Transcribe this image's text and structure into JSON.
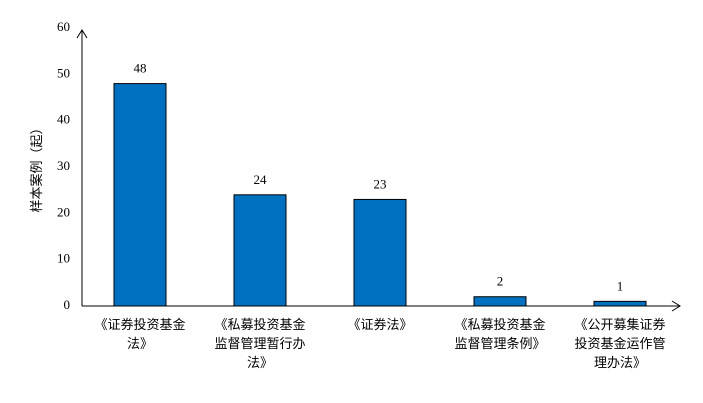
{
  "chart_data": {
    "type": "bar",
    "y_label": "样本案例（起）",
    "categories": [
      "《证券投资基金法》",
      "《私募投资基金监督管理暂行办法》",
      "《证券法》",
      "《私募投资基金监督管理条例》",
      "《公开募集证券投资基金运作管理办法》"
    ],
    "values": [
      48,
      24,
      23,
      2,
      1
    ],
    "color": "#0070c0",
    "ylim": [
      0,
      60
    ],
    "yticks": [
      0,
      10,
      20,
      30,
      40,
      50,
      60
    ],
    "grid": false
  }
}
